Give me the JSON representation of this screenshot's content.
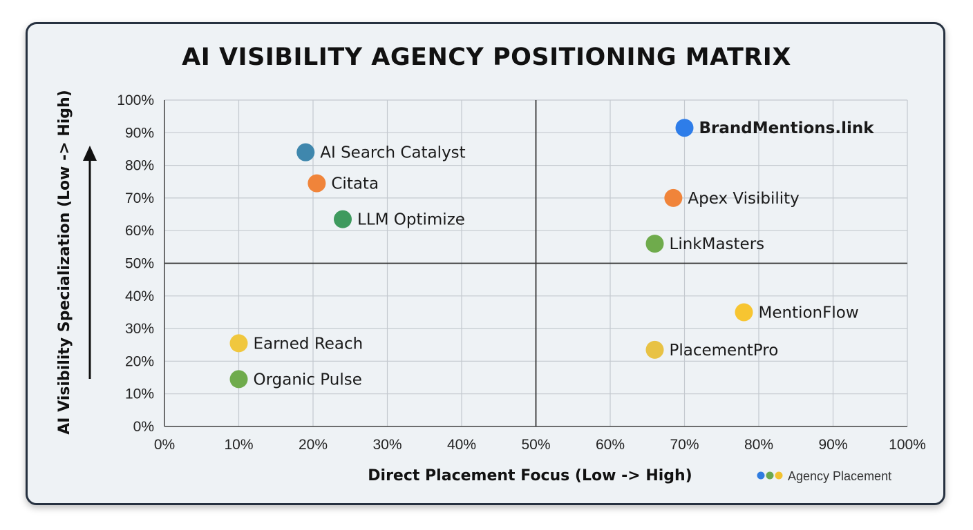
{
  "chart_data": {
    "type": "scatter",
    "title": "AI VISIBILITY AGENCY POSITIONING MATRIX",
    "xlabel": "Direct Placement Focus (Low -> High)",
    "ylabel": "AI Visibility Specialization (Low -> High)",
    "xlim": [
      0,
      100
    ],
    "ylim": [
      0,
      100
    ],
    "x_ticks": [
      "0%",
      "10%",
      "20%",
      "30%",
      "40%",
      "50%",
      "60%",
      "70%",
      "80%",
      "90%",
      "100%"
    ],
    "y_ticks": [
      "0%",
      "10%",
      "20%",
      "30%",
      "40%",
      "50%",
      "60%",
      "70%",
      "80%",
      "90%",
      "100%"
    ],
    "grid": true,
    "quadrant_dividers": {
      "x": 50,
      "y": 50
    },
    "legend": {
      "label": "Agency Placement",
      "position": "bottom-right",
      "dot_colors": [
        "#2f7ce0",
        "#6aa84f",
        "#f2c230"
      ]
    },
    "points": [
      {
        "name": "BrandMentions.link",
        "x": 70,
        "y": 91.5,
        "color": "#2e7de9",
        "bold": true
      },
      {
        "name": "AI Search Catalyst",
        "x": 19,
        "y": 84,
        "color": "#3f87ad",
        "bold": false
      },
      {
        "name": "Citata",
        "x": 20.5,
        "y": 74.5,
        "color": "#f0843a",
        "bold": false
      },
      {
        "name": "Apex Visibility",
        "x": 68.5,
        "y": 70,
        "color": "#f0843a",
        "bold": false
      },
      {
        "name": "LLM Optimize",
        "x": 24,
        "y": 63.5,
        "color": "#3e9a5e",
        "bold": false
      },
      {
        "name": "LinkMasters",
        "x": 66,
        "y": 56,
        "color": "#6fab4c",
        "bold": false
      },
      {
        "name": "MentionFlow",
        "x": 78,
        "y": 35,
        "color": "#f7c531",
        "bold": false
      },
      {
        "name": "Earned Reach",
        "x": 10,
        "y": 25.5,
        "color": "#f0c73e",
        "bold": false
      },
      {
        "name": "PlacementPro",
        "x": 66,
        "y": 23.5,
        "color": "#e8c244",
        "bold": false
      },
      {
        "name": "Organic Pulse",
        "x": 10,
        "y": 14.5,
        "color": "#6fab4c",
        "bold": false
      }
    ]
  }
}
